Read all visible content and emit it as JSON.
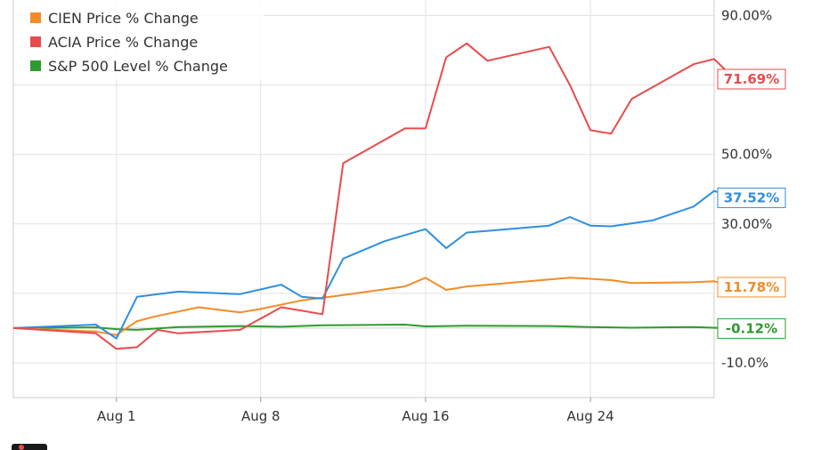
{
  "chart_data": {
    "type": "line",
    "x_axis": {
      "type": "date",
      "min": "2016-07-27",
      "max": "2016-08-30",
      "ticks": [
        {
          "label": "Aug 1",
          "date": "2016-08-01"
        },
        {
          "label": "Aug 8",
          "date": "2016-08-08"
        },
        {
          "label": "Aug 16",
          "date": "2016-08-16"
        },
        {
          "label": "Aug 24",
          "date": "2016-08-24"
        }
      ]
    },
    "y_axis": {
      "side": "right",
      "ylim": [
        -20,
        95
      ],
      "ticks": [
        {
          "label": "90.00%",
          "value": 90
        },
        {
          "label": "50.00%",
          "value": 50
        },
        {
          "label": "30.00%",
          "value": 30
        },
        {
          "label": "-10.0%",
          "value": -10
        }
      ]
    },
    "grid": true,
    "legend_position": "top-left",
    "series": [
      {
        "name": "",
        "color": "#2f8fe0",
        "end_label": "37.52%",
        "points": [
          [
            "2016-07-27",
            0
          ],
          [
            "2016-07-31",
            1
          ],
          [
            "2016-08-01",
            -3
          ],
          [
            "2016-08-02",
            9
          ],
          [
            "2016-08-04",
            10.5
          ],
          [
            "2016-08-07",
            9.8
          ],
          [
            "2016-08-09",
            12.5
          ],
          [
            "2016-08-10",
            9
          ],
          [
            "2016-08-11",
            8.5
          ],
          [
            "2016-08-12",
            20
          ],
          [
            "2016-08-14",
            25
          ],
          [
            "2016-08-16",
            28.5
          ],
          [
            "2016-08-17",
            23
          ],
          [
            "2016-08-18",
            27.5
          ],
          [
            "2016-08-19",
            28
          ],
          [
            "2016-08-22",
            29.5
          ],
          [
            "2016-08-23",
            32
          ],
          [
            "2016-08-24",
            29.5
          ],
          [
            "2016-08-25",
            29.3
          ],
          [
            "2016-08-27",
            31
          ],
          [
            "2016-08-29",
            35
          ],
          [
            "2016-08-30",
            39.5
          ],
          [
            "2016-08-31",
            37.52
          ]
        ]
      },
      {
        "name": "CIEN Price % Change",
        "color": "#f28c28",
        "end_label": "11.78%",
        "points": [
          [
            "2016-07-27",
            0
          ],
          [
            "2016-07-31",
            -1
          ],
          [
            "2016-08-01",
            -2
          ],
          [
            "2016-08-02",
            2
          ],
          [
            "2016-08-03",
            3.5
          ],
          [
            "2016-08-05",
            6
          ],
          [
            "2016-08-07",
            4.5
          ],
          [
            "2016-08-08",
            5.5
          ],
          [
            "2016-08-10",
            8
          ],
          [
            "2016-08-12",
            9.5
          ],
          [
            "2016-08-15",
            12
          ],
          [
            "2016-08-16",
            14.5
          ],
          [
            "2016-08-17",
            11
          ],
          [
            "2016-08-18",
            12
          ],
          [
            "2016-08-20",
            13
          ],
          [
            "2016-08-22",
            14
          ],
          [
            "2016-08-23",
            14.5
          ],
          [
            "2016-08-24",
            14.2
          ],
          [
            "2016-08-25",
            13.8
          ],
          [
            "2016-08-26",
            13
          ],
          [
            "2016-08-29",
            13.2
          ],
          [
            "2016-08-30",
            13.5
          ],
          [
            "2016-08-31",
            11.78
          ]
        ]
      },
      {
        "name": "ACIA Price % Change",
        "color": "#e84b4b",
        "end_label": "71.69%",
        "points": [
          [
            "2016-07-27",
            0
          ],
          [
            "2016-07-31",
            -1.5
          ],
          [
            "2016-08-01",
            -6
          ],
          [
            "2016-08-02",
            -5.5
          ],
          [
            "2016-08-03",
            -0.5
          ],
          [
            "2016-08-04",
            -1.5
          ],
          [
            "2016-08-07",
            -0.5
          ],
          [
            "2016-08-09",
            6
          ],
          [
            "2016-08-10",
            5
          ],
          [
            "2016-08-11",
            4
          ],
          [
            "2016-08-12",
            47.5
          ],
          [
            "2016-08-15",
            57.5
          ],
          [
            "2016-08-16",
            57.5
          ],
          [
            "2016-08-17",
            78
          ],
          [
            "2016-08-18",
            82
          ],
          [
            "2016-08-19",
            77
          ],
          [
            "2016-08-22",
            81
          ],
          [
            "2016-08-23",
            70
          ],
          [
            "2016-08-24",
            57
          ],
          [
            "2016-08-25",
            56
          ],
          [
            "2016-08-26",
            66
          ],
          [
            "2016-08-29",
            76
          ],
          [
            "2016-08-30",
            77.5
          ],
          [
            "2016-08-31",
            71.69
          ]
        ]
      },
      {
        "name": "S&P 500 Level % Change",
        "color": "#2f9a2f",
        "end_label": "-0.12%",
        "points": [
          [
            "2016-07-27",
            0
          ],
          [
            "2016-07-31",
            0.2
          ],
          [
            "2016-08-01",
            -0.3
          ],
          [
            "2016-08-02",
            -0.5
          ],
          [
            "2016-08-04",
            0.3
          ],
          [
            "2016-08-07",
            0.6
          ],
          [
            "2016-08-09",
            0.4
          ],
          [
            "2016-08-11",
            0.8
          ],
          [
            "2016-08-15",
            1.0
          ],
          [
            "2016-08-16",
            0.5
          ],
          [
            "2016-08-18",
            0.7
          ],
          [
            "2016-08-22",
            0.6
          ],
          [
            "2016-08-24",
            0.3
          ],
          [
            "2016-08-26",
            0.1
          ],
          [
            "2016-08-29",
            0.3
          ],
          [
            "2016-08-31",
            -0.12
          ]
        ]
      }
    ]
  }
}
